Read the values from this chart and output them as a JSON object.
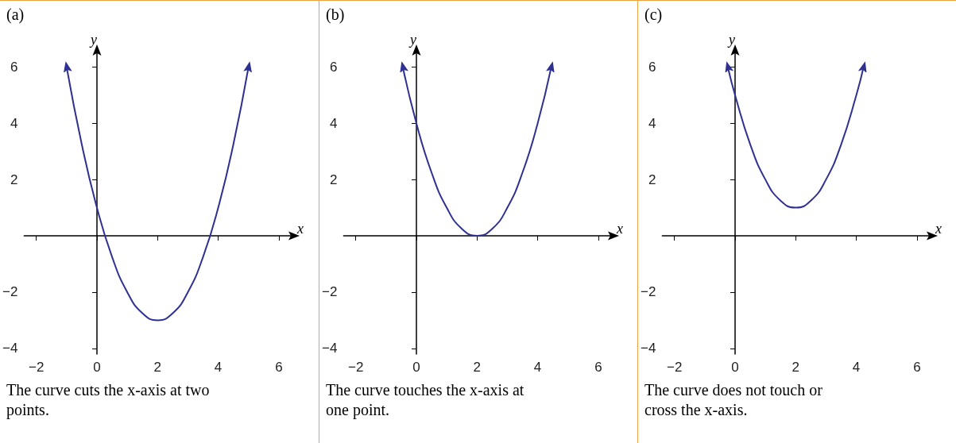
{
  "chart_data": [
    {
      "type": "line",
      "title": "(a)",
      "xlabel": "x",
      "ylabel": "y",
      "x": [
        -1,
        -0.5,
        0,
        0.5,
        1,
        1.5,
        2,
        2.5,
        3,
        3.5,
        4,
        4.5,
        5
      ],
      "values": [
        6,
        3.25,
        1,
        -0.75,
        -2,
        -2.75,
        -3,
        -2.75,
        -2,
        -0.75,
        1,
        3.25,
        6
      ],
      "color": "#2e3192",
      "xlim": [
        -2.4,
        6.5
      ],
      "ylim": [
        -4.2,
        6.6
      ],
      "xticks": [
        -2,
        0,
        2,
        4,
        6
      ],
      "yticks": [
        -4,
        -2,
        2,
        4,
        6
      ],
      "annotations": [
        "The curve cuts the x-axis at two points."
      ]
    },
    {
      "type": "line",
      "title": "(b)",
      "xlabel": "x",
      "ylabel": "y",
      "x": [
        -0.45,
        0,
        0.5,
        1,
        1.5,
        2,
        2.5,
        3,
        3.5,
        4,
        4.45
      ],
      "values": [
        6,
        4,
        2.25,
        1,
        0.25,
        0,
        0.25,
        1,
        2.25,
        4,
        6
      ],
      "color": "#2e3192",
      "xlim": [
        -2.4,
        6.5
      ],
      "ylim": [
        -4.2,
        6.6
      ],
      "xticks": [
        -2,
        0,
        2,
        4,
        6
      ],
      "yticks": [
        -4,
        -2,
        2,
        4,
        6
      ],
      "annotations": [
        "The curve touches the x-axis at one point."
      ]
    },
    {
      "type": "line",
      "title": "(c)",
      "xlabel": "x",
      "ylabel": "y",
      "x": [
        -0.24,
        0,
        0.5,
        1,
        1.5,
        2,
        2.5,
        3,
        3.5,
        4,
        4.24
      ],
      "values": [
        6,
        5,
        3.25,
        2,
        1.25,
        1,
        1.25,
        2,
        3.25,
        5,
        6
      ],
      "color": "#2e3192",
      "xlim": [
        -2.4,
        6.5
      ],
      "ylim": [
        -4.2,
        6.6
      ],
      "xticks": [
        -2,
        0,
        2,
        4,
        6
      ],
      "yticks": [
        -4,
        -2,
        2,
        4,
        6
      ],
      "annotations": [
        "The curve does not touch or cross the x-axis."
      ]
    }
  ]
}
